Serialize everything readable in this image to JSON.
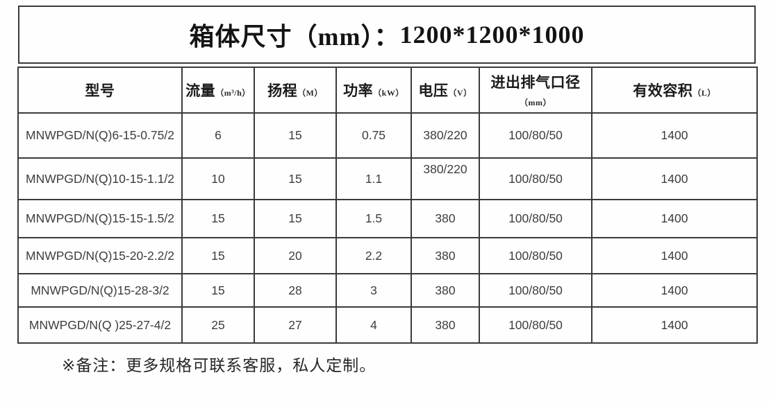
{
  "title": {
    "label": "箱体尺寸（mm）：",
    "dimensions": "1200*1200*1000"
  },
  "table": {
    "columns": [
      {
        "label": "型号",
        "unit": ""
      },
      {
        "label": "流量",
        "unit": "（m³/h）"
      },
      {
        "label": "扬程",
        "unit": "（M）"
      },
      {
        "label": "功率",
        "unit": "（kW）"
      },
      {
        "label": "电压",
        "unit": "（V）"
      },
      {
        "label": "进出排气口径",
        "unit": "（mm）"
      },
      {
        "label": "有效容积",
        "unit": "（L）"
      }
    ],
    "rows": [
      {
        "model": "MNWPGD/N(Q)6-15-0.75/2",
        "flow": "6",
        "head": "15",
        "power": "0.75",
        "voltage": "380/220",
        "port": "100/80/50",
        "volume": "1400"
      },
      {
        "model": "MNWPGD/N(Q)10-15-1.1/2",
        "flow": "10",
        "head": "15",
        "power": "1.1",
        "voltage": "380/220",
        "port": "100/80/50",
        "volume": "1400"
      },
      {
        "model": "MNWPGD/N(Q)15-15-1.5/2",
        "flow": "15",
        "head": "15",
        "power": "1.5",
        "voltage": "380",
        "port": "100/80/50",
        "volume": "1400"
      },
      {
        "model": "MNWPGD/N(Q)15-20-2.2/2",
        "flow": "15",
        "head": "20",
        "power": "2.2",
        "voltage": "380",
        "port": "100/80/50",
        "volume": "1400"
      },
      {
        "model": "MNWPGD/N(Q)15-28-3/2",
        "flow": "15",
        "head": "28",
        "power": "3",
        "voltage": "380",
        "port": "100/80/50",
        "volume": "1400"
      },
      {
        "model": "MNWPGD/N(Q )25-27-4/2",
        "flow": "25",
        "head": "27",
        "power": "4",
        "voltage": "380",
        "port": "100/80/50",
        "volume": "1400"
      }
    ]
  },
  "footnote": "※备注：更多规格可联系客服，私人定制。",
  "colors": {
    "border": "#3a3a3a",
    "title_text": "#141414",
    "cell_text": "#3d3d3d",
    "background": "#fefefe"
  }
}
